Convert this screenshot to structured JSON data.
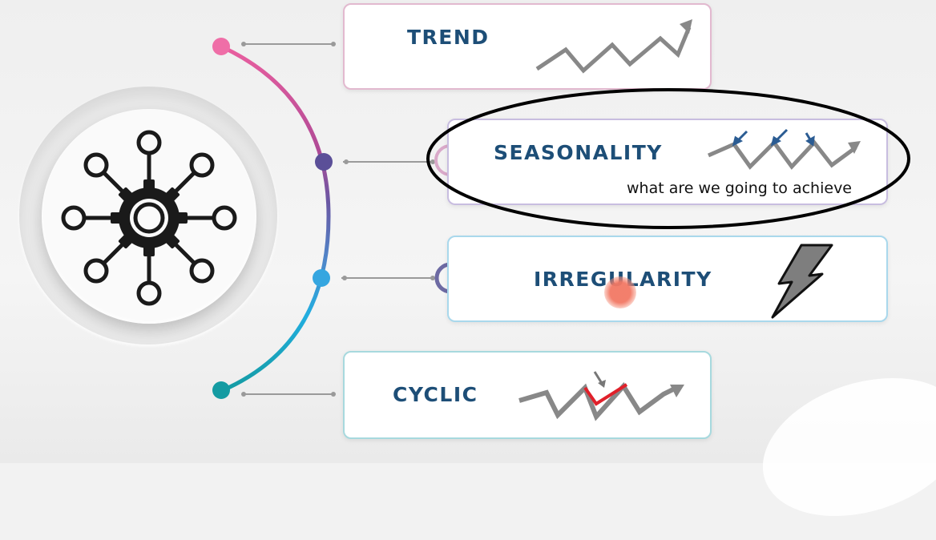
{
  "categories": [
    {
      "id": "trend",
      "label": "TREND",
      "color": "#e75a9b"
    },
    {
      "id": "seasonality",
      "label": "SEASONALITY",
      "color": "#5b4f98"
    },
    {
      "id": "irregularity",
      "label": "IRREGULARITY",
      "color": "#35a6e0"
    },
    {
      "id": "cyclic",
      "label": "CYCLIC",
      "color": "#149ba2"
    }
  ],
  "annotation": {
    "text": "what are we going to achieve"
  },
  "colors": {
    "title": "#1d4e77",
    "graphic": "#888888",
    "cyclic_highlight": "#e0202a",
    "seasonality_arrows": "#2b5c93",
    "annotation_ellipse": "#000000",
    "cursor": "#f27864"
  },
  "icons": {
    "hub": "gear-network-icon",
    "trend": "zigzag-up-arrow-icon",
    "seasonality": "seasonal-wave-arrow-icon",
    "irregularity": "lightning-bolt-icon",
    "cyclic": "cyclic-zigzag-arrow-icon"
  }
}
